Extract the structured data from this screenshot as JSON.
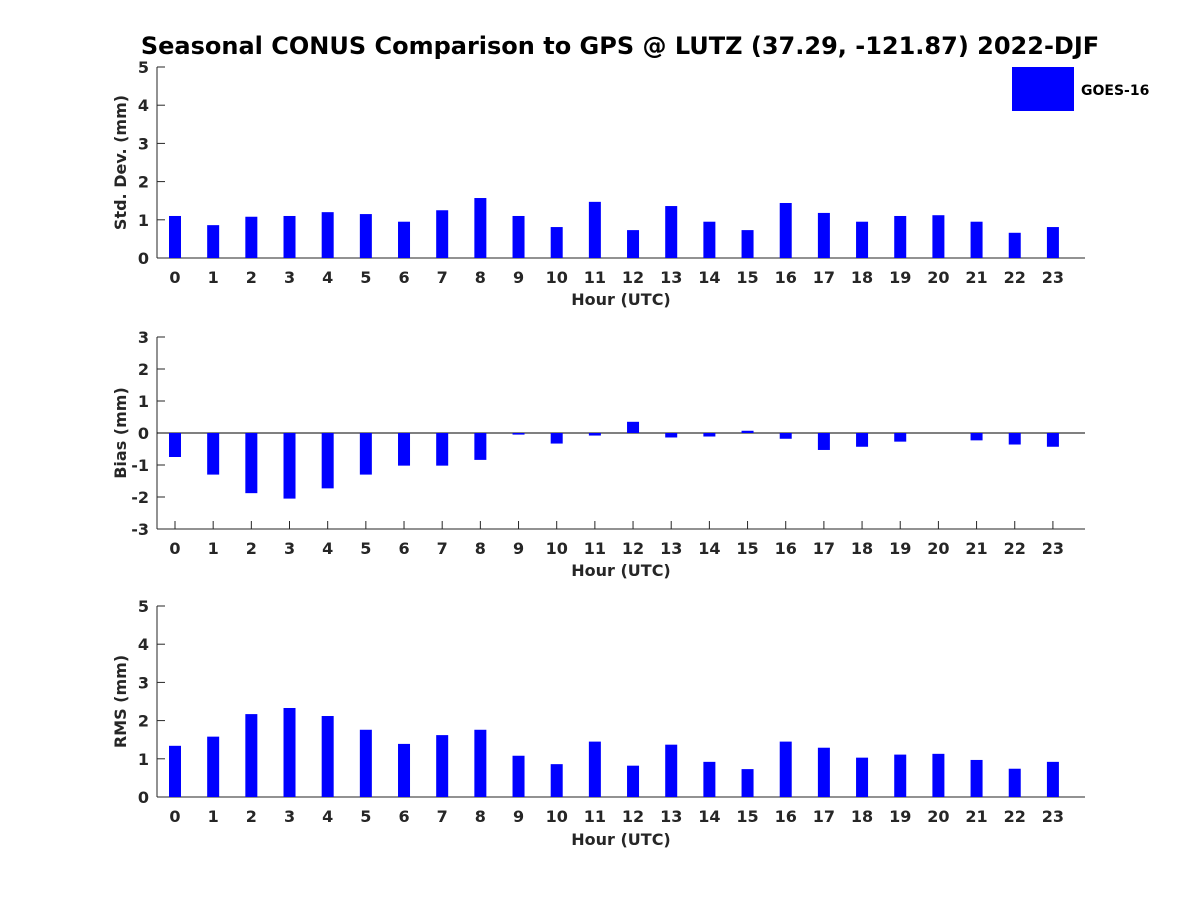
{
  "chart_data": {
    "title": "Seasonal CONUS Comparison to GPS @ LUTZ (37.29, -121.87) 2022-DJF",
    "type": "bar",
    "categories": [
      "0",
      "1",
      "2",
      "3",
      "4",
      "5",
      "6",
      "7",
      "8",
      "9",
      "10",
      "11",
      "12",
      "13",
      "14",
      "15",
      "16",
      "17",
      "18",
      "19",
      "20",
      "21",
      "22",
      "23"
    ],
    "bar_color": "#0000ff",
    "legend": {
      "label": "GOES-16",
      "position": "top-right"
    },
    "panels": [
      {
        "id": "stddev",
        "xlabel": "Hour (UTC)",
        "ylabel": "Std. Dev. (mm)",
        "ylim": [
          0,
          5
        ],
        "yticks": [
          "0",
          "1",
          "2",
          "3",
          "4",
          "5"
        ],
        "series": [
          {
            "name": "GOES-16",
            "values": [
              1.1,
              0.86,
              1.08,
              1.1,
              1.2,
              1.15,
              0.95,
              1.25,
              1.57,
              1.1,
              0.81,
              1.47,
              0.73,
              1.36,
              0.95,
              0.73,
              1.44,
              1.18,
              0.95,
              1.1,
              1.12,
              0.95,
              0.66,
              0.81
            ]
          }
        ]
      },
      {
        "id": "bias",
        "xlabel": "Hour (UTC)",
        "ylabel": "Bias (mm)",
        "ylim": [
          -3,
          3
        ],
        "yticks": [
          "-3",
          "-2",
          "-1",
          "0",
          "1",
          "2",
          "3"
        ],
        "series": [
          {
            "name": "GOES-16",
            "values": [
              -0.75,
              -1.3,
              -1.88,
              -2.05,
              -1.73,
              -1.3,
              -1.02,
              -1.02,
              -0.84,
              -0.05,
              -0.33,
              -0.08,
              0.35,
              -0.14,
              -0.11,
              0.07,
              -0.18,
              -0.53,
              -0.43,
              -0.27,
              0.0,
              -0.23,
              -0.36,
              -0.43
            ]
          }
        ]
      },
      {
        "id": "rms",
        "xlabel": "Hour (UTC)",
        "ylabel": "RMS (mm)",
        "ylim": [
          0,
          5
        ],
        "yticks": [
          "0",
          "1",
          "2",
          "3",
          "4",
          "5"
        ],
        "series": [
          {
            "name": "GOES-16",
            "values": [
              1.34,
              1.58,
              2.17,
              2.33,
              2.12,
              1.76,
              1.39,
              1.62,
              1.76,
              1.08,
              0.86,
              1.45,
              0.82,
              1.37,
              0.92,
              0.73,
              1.45,
              1.29,
              1.03,
              1.11,
              1.13,
              0.97,
              0.74,
              0.92
            ]
          }
        ]
      }
    ]
  }
}
